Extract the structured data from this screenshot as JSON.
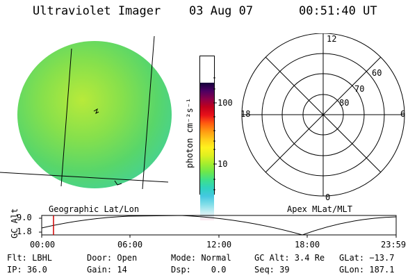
{
  "header": {
    "instrument": "Ultraviolet Imager",
    "date": "03 Aug 07",
    "time": "00:51:40 UT"
  },
  "colorbar": {
    "unit_label": "photon cm⁻²s⁻¹",
    "tick_labels": [
      "100",
      "10"
    ],
    "colors": [
      "#fde8ef",
      "#c8eef3",
      "#7fdde8",
      "#44c8e0",
      "#2fd3bf",
      "#3ee08a",
      "#6ee84a",
      "#a5ee2e",
      "#dff020",
      "#fff21e",
      "#ffcc1a",
      "#ff9a12",
      "#ff5a10",
      "#e8101a",
      "#c0001c",
      "#8a004a",
      "#4b0063",
      "#14003a"
    ]
  },
  "image_panel": {
    "caption": "Geographic Lat/Lon"
  },
  "polar_panel": {
    "caption": "Apex MLat/MLT",
    "mlt_labels": [
      "12",
      "18",
      "6",
      "0"
    ],
    "lat_labels": [
      "60",
      "70",
      "80"
    ]
  },
  "altitude_plot": {
    "ylabel": "GC Alt",
    "yticks": [
      "9.0",
      "1.8"
    ],
    "xticks": [
      "00:00",
      "06:00",
      "12:00",
      "18:00",
      "23:59"
    ],
    "marker_color": "#d00000"
  },
  "footer": {
    "row1": {
      "flt": "Flt: LBHL",
      "door": "Door: Open",
      "mode": "Mode: Normal",
      "gcalt": "GC Alt: 3.4 Re",
      "glat": "GLat: −13.7"
    },
    "row2": {
      "ip": "IP: 36.0",
      "gain": "Gain: 14",
      "dsp": "Dsp:    0.0",
      "seq": "Seq: 39",
      "glon": "GLon: 187.1"
    }
  }
}
